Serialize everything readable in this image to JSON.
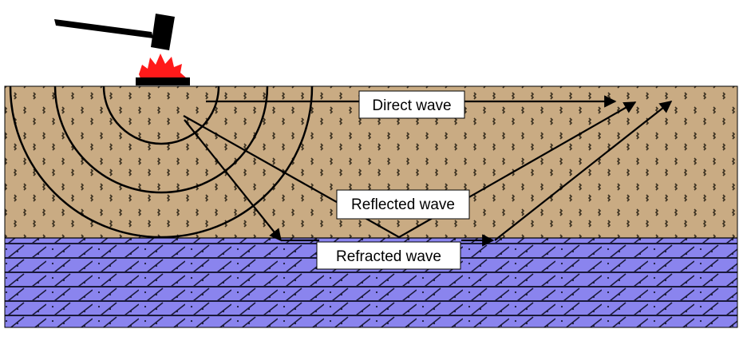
{
  "labels": {
    "direct": "Direct wave",
    "reflected": "Reflected wave",
    "refracted": "Refracted wave"
  },
  "colors": {
    "soil": "#c9ab83",
    "soil_mark": "#3a3020",
    "bedrock": "#8a84ee",
    "bedrock_line": "#1a1a3a",
    "flash": "#ff1a1a",
    "ink": "#000000"
  },
  "icons": {
    "source": "hammer-icon",
    "impact": "impact-flash-icon"
  }
}
